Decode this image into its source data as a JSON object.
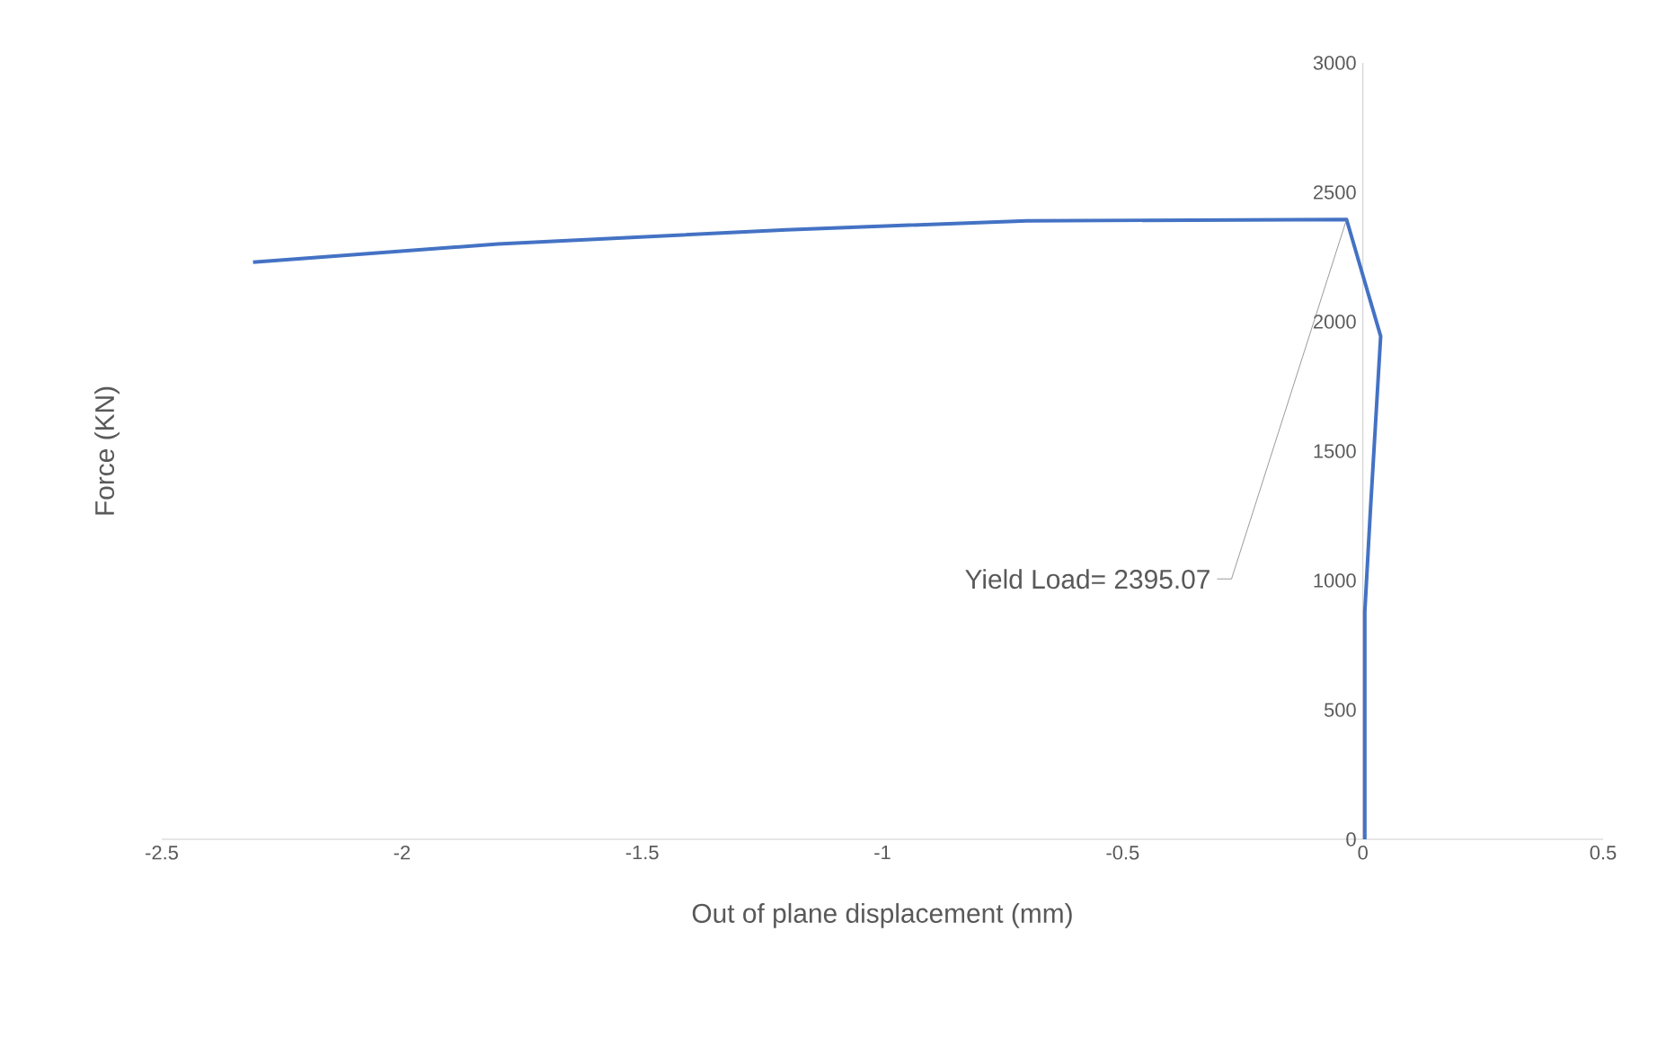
{
  "chart_data": {
    "type": "line",
    "xlabel": "Out of plane displacement (mm)",
    "ylabel": "Force (KN)",
    "xlim": [
      -2.5,
      0.5
    ],
    "xticks": [
      -2.5,
      -2,
      -1.5,
      -1,
      -0.5,
      0,
      0.5
    ],
    "ylim": [
      0,
      3000
    ],
    "yticks": [
      0,
      500,
      1000,
      1500,
      2000,
      2500,
      3000
    ],
    "series": [
      {
        "color": "#4472c4",
        "x": [
          0.004,
          0.004,
          0.015,
          0.037,
          -0.034,
          -0.7,
          -1.2,
          -1.8,
          -2.31
        ],
        "values": [
          0,
          880,
          1250,
          1944,
          2395,
          2390,
          2355,
          2300,
          2230
        ]
      }
    ],
    "annotations": [
      {
        "text": "Yield Load=  2395.07",
        "x": -0.034,
        "y": 2395
      }
    ],
    "grid": false,
    "marker": "none",
    "line_style": "solid"
  }
}
